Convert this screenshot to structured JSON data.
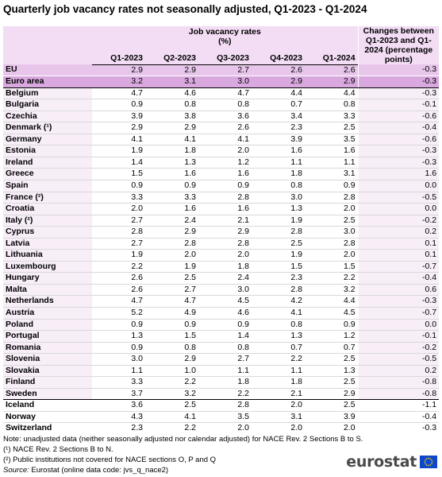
{
  "title": "Quarterly job vacancy rates not seasonally adjusted, Q1-2023 - Q1-2024",
  "table": {
    "group_header": "Job vacancy rates\n(%)",
    "change_header": "Changes between Q1-2023 and Q1-2024 (percentage points)",
    "columns": [
      "Q1-2023",
      "Q2-2023",
      "Q3-2023",
      "Q4-2023",
      "Q1-2024"
    ],
    "rows": [
      {
        "name": "EU",
        "values": [
          "2.9",
          "2.9",
          "2.7",
          "2.6",
          "2.6"
        ],
        "change": "-0.3",
        "group": "agg"
      },
      {
        "name": "Euro area",
        "values": [
          "3.2",
          "3.1",
          "3.0",
          "2.9",
          "2.9"
        ],
        "change": "-0.3",
        "group": "agg-ea"
      },
      {
        "name": "Belgium",
        "values": [
          "4.7",
          "4.6",
          "4.7",
          "4.4",
          "4.4"
        ],
        "change": "-0.3",
        "group": "ms"
      },
      {
        "name": "Bulgaria",
        "values": [
          "0.9",
          "0.8",
          "0.8",
          "0.7",
          "0.8"
        ],
        "change": "-0.1",
        "group": "ms"
      },
      {
        "name": "Czechia",
        "values": [
          "3.9",
          "3.8",
          "3.6",
          "3.4",
          "3.3"
        ],
        "change": "-0.6",
        "group": "ms"
      },
      {
        "name": "Denmark (¹)",
        "values": [
          "2.9",
          "2.9",
          "2.6",
          "2.3",
          "2.5"
        ],
        "change": "-0.4",
        "group": "ms"
      },
      {
        "name": "Germany",
        "values": [
          "4.1",
          "4.1",
          "4.1",
          "3.9",
          "3.5"
        ],
        "change": "-0.6",
        "group": "ms"
      },
      {
        "name": "Estonia",
        "values": [
          "1.9",
          "1.8",
          "2.0",
          "1.6",
          "1.6"
        ],
        "change": "-0.3",
        "group": "ms"
      },
      {
        "name": "Ireland",
        "values": [
          "1.4",
          "1.3",
          "1.2",
          "1.1",
          "1.1"
        ],
        "change": "-0.3",
        "group": "ms"
      },
      {
        "name": "Greece",
        "values": [
          "1.5",
          "1.6",
          "1.6",
          "1.8",
          "3.1"
        ],
        "change": "1.6",
        "group": "ms"
      },
      {
        "name": "Spain",
        "values": [
          "0.9",
          "0.9",
          "0.9",
          "0.8",
          "0.9"
        ],
        "change": "0.0",
        "group": "ms"
      },
      {
        "name": "France (²)",
        "values": [
          "3.3",
          "3.3",
          "2.8",
          "3.0",
          "2.8"
        ],
        "change": "-0.5",
        "group": "ms"
      },
      {
        "name": "Croatia",
        "values": [
          "2.0",
          "1.6",
          "1.6",
          "1.3",
          "2.0"
        ],
        "change": "0.0",
        "group": "ms"
      },
      {
        "name": "Italy (²)",
        "values": [
          "2.7",
          "2.4",
          "2.1",
          "1.9",
          "2.5"
        ],
        "change": "-0.2",
        "group": "ms"
      },
      {
        "name": "Cyprus",
        "values": [
          "2.8",
          "2.9",
          "2.9",
          "2.8",
          "3.0"
        ],
        "change": "0.2",
        "group": "ms"
      },
      {
        "name": "Latvia",
        "values": [
          "2.7",
          "2.8",
          "2.8",
          "2.5",
          "2.8"
        ],
        "change": "0.1",
        "group": "ms"
      },
      {
        "name": "Lithuania",
        "values": [
          "1.9",
          "2.0",
          "2.0",
          "1.9",
          "2.0"
        ],
        "change": "0.1",
        "group": "ms"
      },
      {
        "name": "Luxembourg",
        "values": [
          "2.2",
          "1.9",
          "1.8",
          "1.5",
          "1.5"
        ],
        "change": "-0.7",
        "group": "ms"
      },
      {
        "name": "Hungary",
        "values": [
          "2.6",
          "2.5",
          "2.4",
          "2.3",
          "2.2"
        ],
        "change": "-0.4",
        "group": "ms"
      },
      {
        "name": "Malta",
        "values": [
          "2.6",
          "2.7",
          "3.0",
          "2.8",
          "3.2"
        ],
        "change": "0.6",
        "group": "ms"
      },
      {
        "name": "Netherlands",
        "values": [
          "4.7",
          "4.7",
          "4.5",
          "4.2",
          "4.4"
        ],
        "change": "-0.3",
        "group": "ms"
      },
      {
        "name": "Austria",
        "values": [
          "5.2",
          "4.9",
          "4.6",
          "4.1",
          "4.5"
        ],
        "change": "-0.7",
        "group": "ms"
      },
      {
        "name": "Poland",
        "values": [
          "0.9",
          "0.9",
          "0.9",
          "0.8",
          "0.9"
        ],
        "change": "0.0",
        "group": "ms"
      },
      {
        "name": "Portugal",
        "values": [
          "1.3",
          "1.5",
          "1.4",
          "1.3",
          "1.2"
        ],
        "change": "-0.1",
        "group": "ms"
      },
      {
        "name": "Romania",
        "values": [
          "0.9",
          "0.8",
          "0.8",
          "0.7",
          "0.7"
        ],
        "change": "-0.2",
        "group": "ms"
      },
      {
        "name": "Slovenia",
        "values": [
          "3.0",
          "2.9",
          "2.7",
          "2.2",
          "2.5"
        ],
        "change": "-0.5",
        "group": "ms"
      },
      {
        "name": "Slovakia",
        "values": [
          "1.1",
          "1.0",
          "1.1",
          "1.1",
          "1.3"
        ],
        "change": "0.2",
        "group": "ms"
      },
      {
        "name": "Finland",
        "values": [
          "3.3",
          "2.2",
          "1.8",
          "1.8",
          "2.5"
        ],
        "change": "-0.8",
        "group": "ms"
      },
      {
        "name": "Sweden",
        "values": [
          "3.7",
          "3.2",
          "2.2",
          "2.1",
          "2.9"
        ],
        "change": "-0.8",
        "group": "ms last-eu"
      },
      {
        "name": "Iceland",
        "values": [
          "3.6",
          "2.5",
          "2.8",
          "2.0",
          "2.5"
        ],
        "change": "-1.1",
        "group": "efta"
      },
      {
        "name": "Norway",
        "values": [
          "4.3",
          "4.1",
          "3.5",
          "3.1",
          "3.9"
        ],
        "change": "-0.4",
        "group": "efta"
      },
      {
        "name": "Switzerland",
        "values": [
          "2.3",
          "2.2",
          "2.0",
          "2.0",
          "2.0"
        ],
        "change": "-0.3",
        "group": "efta last"
      }
    ]
  },
  "notes": {
    "note": "Note: unadjusted data (neither seasonally adjusted nor calendar adjusted) for NACE Rev. 2 Sections B to S.",
    "footnote1": "(¹) NACE Rev. 2 Sections B to N.",
    "footnote2": "(²) Public institutions not covered for NACE sections O, P and Q",
    "source_label": "Source:",
    "source_text": " Eurostat (online data code: jvs_q_nace2)"
  },
  "logo": {
    "text": "eurostat",
    "flag_color": "#0e47cb",
    "star_color": "#ffe500"
  },
  "colors": {
    "header_bg": "#f3ddf5",
    "eu_row_bg": "#e8c6ec",
    "euro_area_row_bg": "#d8a8de",
    "stub_bg": "#f7eef8"
  }
}
